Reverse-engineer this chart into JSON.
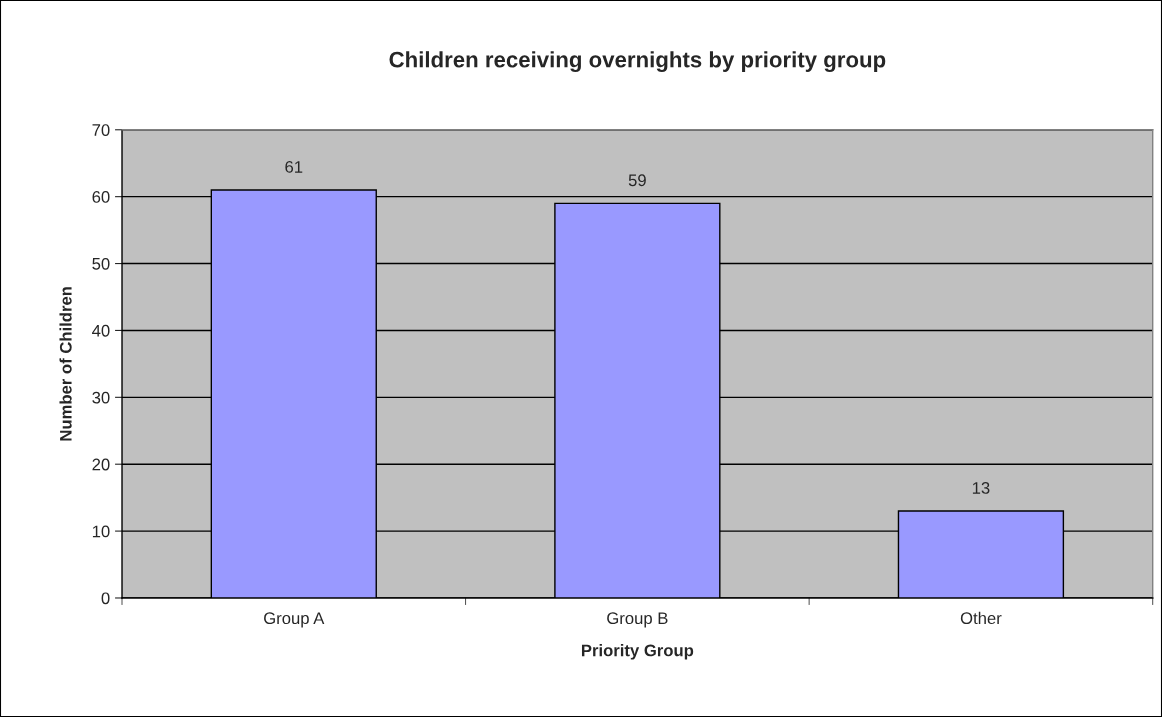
{
  "chart_data": {
    "type": "bar",
    "title": "Children receiving overnights by priority group",
    "xlabel": "Priority Group",
    "ylabel": "Number of Children",
    "categories": [
      "Group A",
      "Group B",
      "Other"
    ],
    "values": [
      61,
      59,
      13
    ],
    "color": "#9999ff",
    "ylim": [
      0,
      70
    ],
    "yticks": [
      0,
      10,
      20,
      30,
      40,
      50,
      60,
      70
    ],
    "grid": "y",
    "data_labels": true
  }
}
